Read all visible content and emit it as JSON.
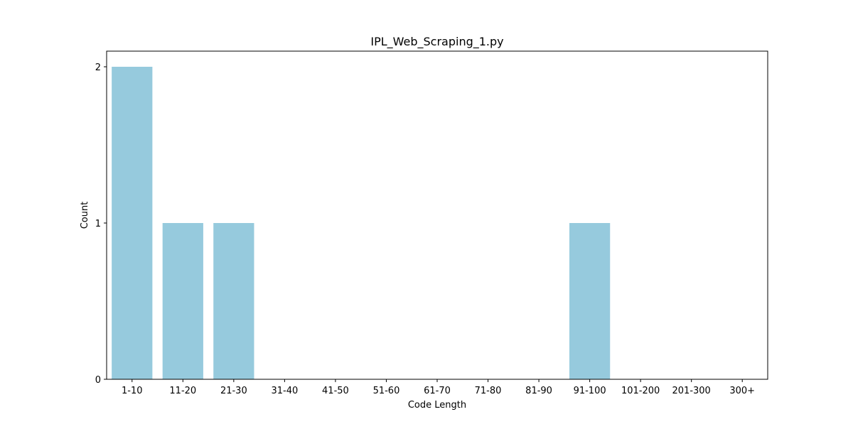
{
  "chart_data": {
    "type": "bar",
    "title": "IPL_Web_Scraping_1.py",
    "xlabel": "Code Length",
    "ylabel": "Count",
    "categories": [
      "1-10",
      "11-20",
      "21-30",
      "31-40",
      "41-50",
      "51-60",
      "61-70",
      "71-80",
      "81-90",
      "91-100",
      "101-200",
      "201-300",
      "300+"
    ],
    "values": [
      2,
      1,
      1,
      0,
      0,
      0,
      0,
      0,
      0,
      1,
      0,
      0,
      0
    ],
    "ylim": [
      0,
      2.1
    ],
    "yticks": [
      0,
      1,
      2
    ],
    "grid": false,
    "colors": {
      "bar": "#96cadd",
      "axis": "#000000"
    }
  }
}
